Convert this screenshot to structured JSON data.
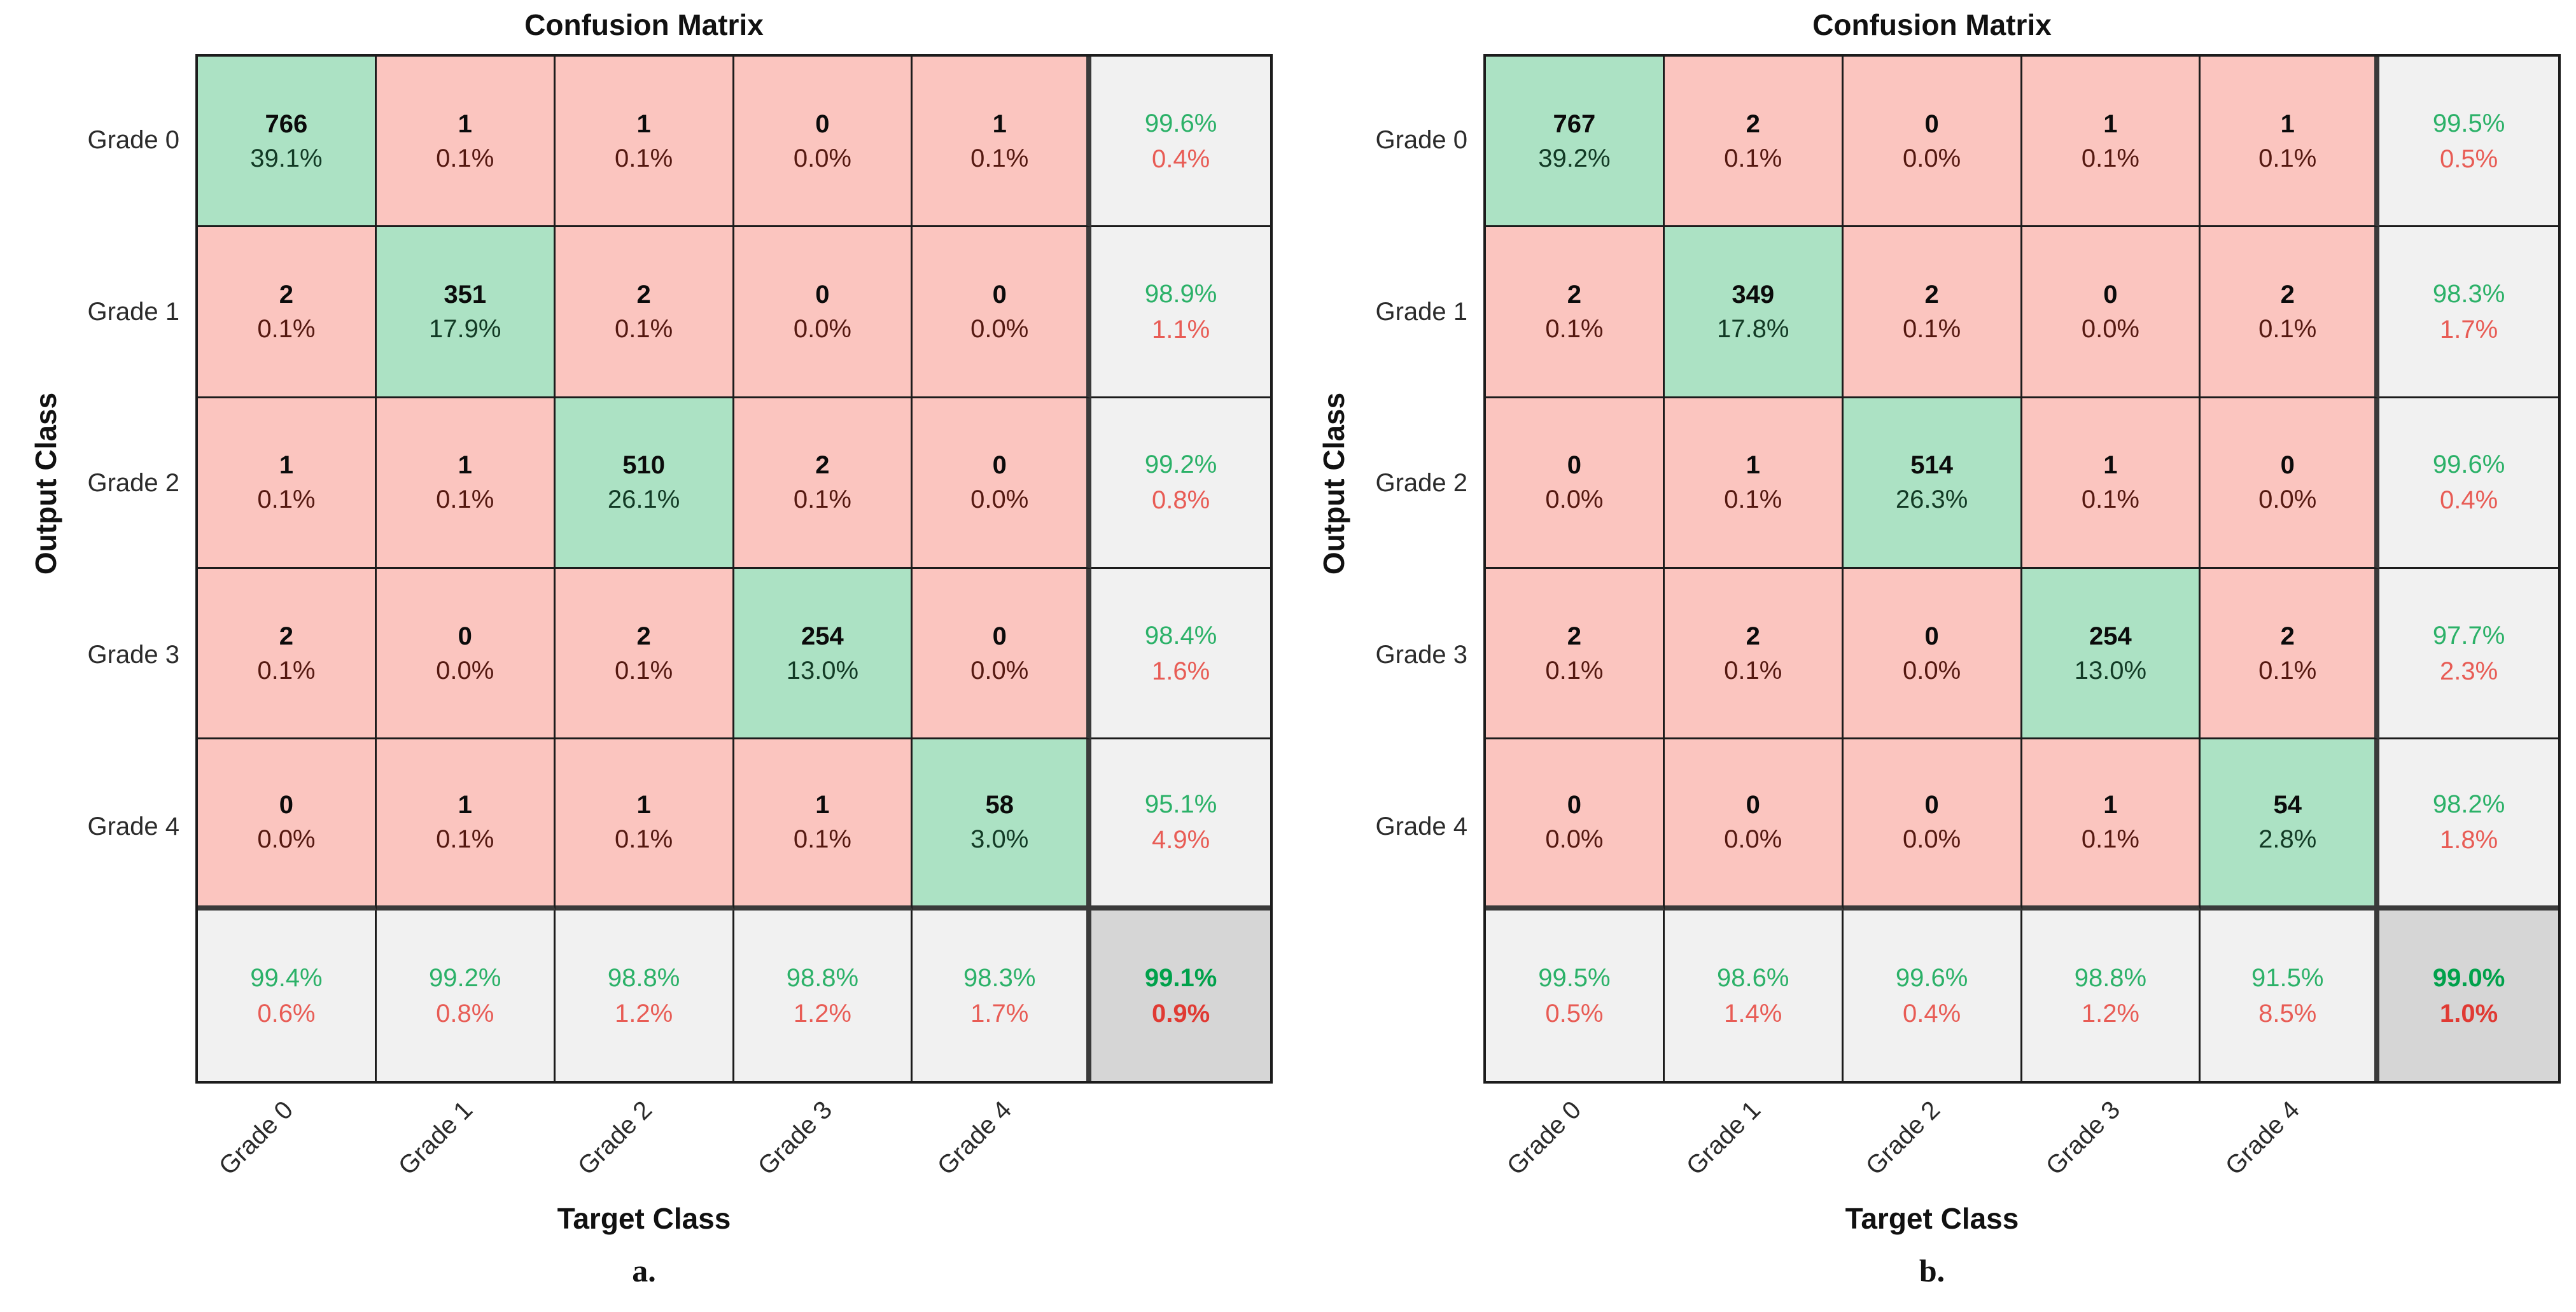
{
  "colors": {
    "diagonal_cell": "#ACE2C4",
    "off_diagonal_cell": "#FBC5BF",
    "summary_cell": "#F1F1F1",
    "corner_cell": "#D6D6D6",
    "summary_green_text": "#2BB168",
    "summary_red_text": "#E85C55",
    "corner_green_text": "#00A14B",
    "corner_red_text": "#E03A33",
    "diagonal_pct_text": "#123A25",
    "off_diagonal_pct_text": "#541810",
    "grid_line": "#1c1c1c",
    "thick_separator": "#3a3a3a"
  },
  "chart_data": [
    {
      "type": "heatmap",
      "title": "Confusion Matrix",
      "panel_label": "a.",
      "xlabel": "Target Class",
      "ylabel": "Output Class",
      "classes": [
        "Grade 0",
        "Grade 1",
        "Grade 2",
        "Grade 3",
        "Grade 4"
      ],
      "matrix_counts": [
        [
          766,
          1,
          1,
          0,
          1
        ],
        [
          2,
          351,
          2,
          0,
          0
        ],
        [
          1,
          1,
          510,
          2,
          0
        ],
        [
          2,
          0,
          2,
          254,
          0
        ],
        [
          0,
          1,
          1,
          1,
          58
        ]
      ],
      "matrix_pct": [
        [
          "39.1%",
          "0.1%",
          "0.1%",
          "0.0%",
          "0.1%"
        ],
        [
          "0.1%",
          "17.9%",
          "0.1%",
          "0.0%",
          "0.0%"
        ],
        [
          "0.1%",
          "0.1%",
          "26.1%",
          "0.1%",
          "0.0%"
        ],
        [
          "0.1%",
          "0.0%",
          "0.1%",
          "13.0%",
          "0.0%"
        ],
        [
          "0.0%",
          "0.1%",
          "0.1%",
          "0.1%",
          "3.0%"
        ]
      ],
      "row_summary_pct": [
        [
          "99.6%",
          "0.4%"
        ],
        [
          "98.9%",
          "1.1%"
        ],
        [
          "99.2%",
          "0.8%"
        ],
        [
          "98.4%",
          "1.6%"
        ],
        [
          "95.1%",
          "4.9%"
        ]
      ],
      "col_summary_pct": [
        [
          "99.4%",
          "0.6%"
        ],
        [
          "99.2%",
          "0.8%"
        ],
        [
          "98.8%",
          "1.2%"
        ],
        [
          "98.8%",
          "1.2%"
        ],
        [
          "98.3%",
          "1.7%"
        ]
      ],
      "overall_pct": [
        "99.1%",
        "0.9%"
      ]
    },
    {
      "type": "heatmap",
      "title": "Confusion Matrix",
      "panel_label": "b.",
      "xlabel": "Target Class",
      "ylabel": "Output Class",
      "classes": [
        "Grade 0",
        "Grade 1",
        "Grade 2",
        "Grade 3",
        "Grade 4"
      ],
      "matrix_counts": [
        [
          767,
          2,
          0,
          1,
          1
        ],
        [
          2,
          349,
          2,
          0,
          2
        ],
        [
          0,
          1,
          514,
          1,
          0
        ],
        [
          2,
          2,
          0,
          254,
          2
        ],
        [
          0,
          0,
          0,
          1,
          54
        ]
      ],
      "matrix_pct": [
        [
          "39.2%",
          "0.1%",
          "0.0%",
          "0.1%",
          "0.1%"
        ],
        [
          "0.1%",
          "17.8%",
          "0.1%",
          "0.0%",
          "0.1%"
        ],
        [
          "0.0%",
          "0.1%",
          "26.3%",
          "0.1%",
          "0.0%"
        ],
        [
          "0.1%",
          "0.1%",
          "0.0%",
          "13.0%",
          "0.1%"
        ],
        [
          "0.0%",
          "0.0%",
          "0.0%",
          "0.1%",
          "2.8%"
        ]
      ],
      "row_summary_pct": [
        [
          "99.5%",
          "0.5%"
        ],
        [
          "98.3%",
          "1.7%"
        ],
        [
          "99.6%",
          "0.4%"
        ],
        [
          "97.7%",
          "2.3%"
        ],
        [
          "98.2%",
          "1.8%"
        ]
      ],
      "col_summary_pct": [
        [
          "99.5%",
          "0.5%"
        ],
        [
          "98.6%",
          "1.4%"
        ],
        [
          "99.6%",
          "0.4%"
        ],
        [
          "98.8%",
          "1.2%"
        ],
        [
          "91.5%",
          "8.5%"
        ]
      ],
      "overall_pct": [
        "99.0%",
        "1.0%"
      ]
    }
  ]
}
